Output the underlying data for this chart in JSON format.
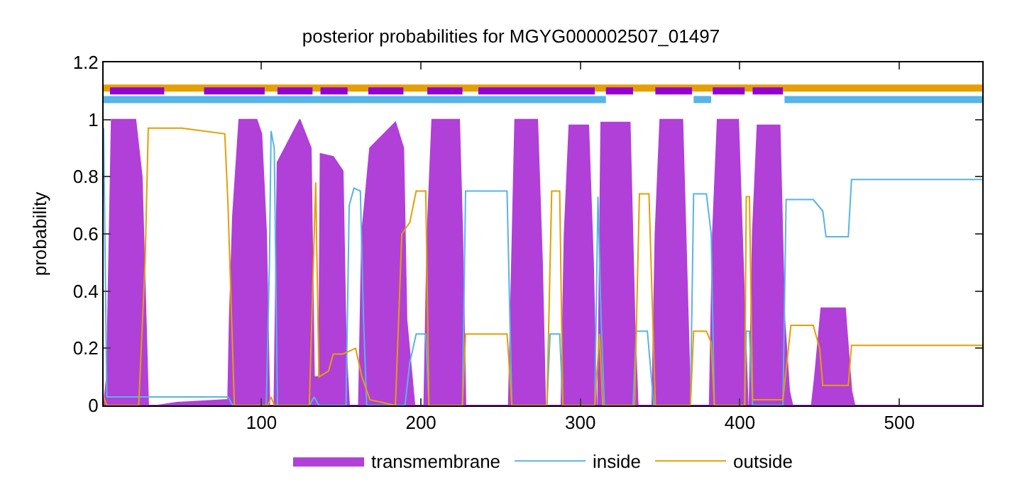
{
  "chart_data": {
    "type": "line",
    "title": "posterior probabilities for MGYG000002507_01497",
    "ylabel": "probability",
    "xlim": [
      1,
      552
    ],
    "xticks": [
      100,
      200,
      300,
      400,
      500
    ],
    "ylim": [
      0,
      1.2
    ],
    "yticks": [
      0,
      {
        "value": 0.2,
        "label": "0.2"
      },
      {
        "value": 0.4,
        "label": "0.4"
      },
      {
        "value": 0.6,
        "label": "0.6"
      },
      {
        "value": 0.8,
        "label": "0.8"
      },
      1,
      {
        "value": 1.2,
        "label": "1.2"
      }
    ],
    "grid": false,
    "legend": "bottom",
    "marker": "none",
    "line_style": "solid",
    "series": [
      {
        "name": "transmembrane",
        "type": "area",
        "color": "#b040d8",
        "x": [
          1,
          3,
          6,
          21,
          25,
          29,
          35,
          47,
          79,
          80,
          82,
          86,
          97,
          100,
          103,
          105,
          108,
          110,
          124,
          131,
          133,
          136,
          137,
          145,
          151,
          153,
          155,
          161,
          163,
          168,
          184,
          189,
          191,
          196,
          202,
          204,
          207,
          224,
          226,
          228,
          255,
          257,
          259,
          273,
          276,
          278,
          288,
          290,
          293,
          305,
          308,
          310,
          311,
          313,
          331,
          334,
          336,
          345,
          347,
          350,
          364,
          367,
          369,
          381,
          383,
          386,
          399,
          402,
          405,
          406,
          408,
          411,
          425,
          428,
          431,
          433,
          445,
          447,
          451,
          466,
          470,
          472,
          552
        ],
        "values": [
          0,
          0.1,
          1.0,
          1.0,
          0.8,
          0,
          0,
          0.01,
          0.02,
          0.3,
          0.66,
          1.0,
          1.0,
          0.95,
          0.6,
          0,
          0,
          0.85,
          1.0,
          0.9,
          0.1,
          0.1,
          0.88,
          0.87,
          0.82,
          0.2,
          0,
          0,
          0.6,
          0.9,
          0.99,
          0.9,
          0.3,
          0,
          0,
          0.6,
          1.0,
          1.0,
          0.6,
          0,
          0,
          0.5,
          1.0,
          1.0,
          0.5,
          0,
          0,
          0.6,
          0.98,
          0.98,
          0.5,
          0,
          0,
          0.99,
          0.99,
          0.3,
          0,
          0,
          0.6,
          1.0,
          1.0,
          0.4,
          0,
          0,
          0.6,
          1.0,
          1.0,
          0.5,
          0,
          0,
          0.6,
          0.98,
          0.98,
          0.3,
          0.05,
          0,
          0,
          0.1,
          0.34,
          0.34,
          0.05,
          0,
          0
        ]
      },
      {
        "name": "inside",
        "color": "#56b4e9",
        "x": [
          1,
          3,
          79,
          82,
          103,
          105,
          106,
          108,
          110,
          130,
          133,
          136,
          153,
          155,
          158,
          162,
          164,
          166,
          190,
          193,
          197,
          203,
          205,
          226,
          228,
          254,
          257,
          279,
          281,
          287,
          289,
          309,
          311,
          313,
          315,
          333,
          335,
          342,
          346,
          369,
          371,
          379,
          382,
          384,
          403,
          404,
          406,
          408,
          427,
          429,
          446,
          452,
          454,
          468,
          470,
          552
        ],
        "values": [
          0.97,
          0.03,
          0.03,
          0,
          0,
          0.5,
          0.96,
          0.9,
          0,
          0,
          0.03,
          0,
          0,
          0.7,
          0.76,
          0.75,
          0.3,
          0,
          0,
          0.15,
          0.25,
          0.25,
          0,
          0,
          0.75,
          0.75,
          0,
          0,
          0.25,
          0.25,
          0,
          0,
          0.73,
          0.3,
          0,
          0,
          0.26,
          0.26,
          0,
          0,
          0.74,
          0.74,
          0.6,
          0,
          0,
          0.26,
          0.26,
          0,
          0,
          0.72,
          0.72,
          0.68,
          0.59,
          0.59,
          0.79,
          0.79
        ]
      },
      {
        "name": "outside",
        "color": "#e69f00",
        "x": [
          1,
          3,
          23,
          27,
          29,
          50,
          77,
          79,
          83,
          104,
          106,
          108,
          130,
          134,
          136,
          142,
          145,
          151,
          159,
          163,
          168,
          184,
          188,
          193,
          197,
          203,
          205,
          226,
          228,
          254,
          257,
          279,
          282,
          287,
          289,
          309,
          312,
          314,
          334,
          337,
          343,
          347,
          369,
          371,
          379,
          382,
          384,
          403,
          404,
          406,
          408,
          427,
          432,
          446,
          450,
          452,
          468,
          470,
          552
        ],
        "values": [
          0.03,
          0,
          0,
          0.5,
          0.97,
          0.97,
          0.95,
          0.7,
          0,
          0,
          0.03,
          0,
          0,
          0.78,
          0.1,
          0.12,
          0.18,
          0.18,
          0.2,
          0.1,
          0.02,
          0,
          0.6,
          0.64,
          0.75,
          0.75,
          0,
          0,
          0.25,
          0.25,
          0,
          0,
          0.75,
          0.75,
          0,
          0,
          0.25,
          0,
          0,
          0.74,
          0.74,
          0,
          0,
          0.26,
          0.26,
          0.22,
          0,
          0,
          0.73,
          0.73,
          0.02,
          0.02,
          0.28,
          0.28,
          0.2,
          0.07,
          0.07,
          0.21,
          0.21
        ]
      },
      {
        "color": "#e69f00",
        "x": [
          1,
          552
        ],
        "values": [
          1.11,
          1.11
        ]
      },
      {
        "color": "#56b4e9",
        "x": [
          1,
          316
        ],
        "values": [
          1.07,
          1.07
        ]
      },
      {
        "color": "#56b4e9",
        "x": [
          371,
          382
        ],
        "values": [
          1.07,
          1.07
        ]
      },
      {
        "color": "#56b4e9",
        "x": [
          428,
          552
        ],
        "values": [
          1.07,
          1.07
        ]
      },
      {
        "color": "#9400d3",
        "x": [
          5,
          39
        ],
        "values": [
          1.1,
          1.1
        ]
      },
      {
        "color": "#9400d3",
        "x": [
          64,
          102
        ],
        "values": [
          1.1,
          1.1
        ]
      },
      {
        "color": "#9400d3",
        "x": [
          110,
          132
        ],
        "values": [
          1.1,
          1.1
        ]
      },
      {
        "color": "#9400d3",
        "x": [
          137,
          154
        ],
        "values": [
          1.1,
          1.1
        ]
      },
      {
        "color": "#9400d3",
        "x": [
          167,
          189
        ],
        "values": [
          1.1,
          1.1
        ]
      },
      {
        "color": "#9400d3",
        "x": [
          204,
          226
        ],
        "values": [
          1.1,
          1.1
        ]
      },
      {
        "color": "#9400d3",
        "x": [
          236,
          309
        ],
        "values": [
          1.1,
          1.1
        ]
      },
      {
        "color": "#9400d3",
        "x": [
          316,
          333
        ],
        "values": [
          1.1,
          1.1
        ]
      },
      {
        "color": "#9400d3",
        "x": [
          347,
          370
        ],
        "values": [
          1.1,
          1.1
        ]
      },
      {
        "color": "#9400d3",
        "x": [
          383,
          403
        ],
        "values": [
          1.1,
          1.1
        ]
      },
      {
        "color": "#9400d3",
        "x": [
          408,
          427
        ],
        "values": [
          1.1,
          1.1
        ]
      }
    ]
  }
}
